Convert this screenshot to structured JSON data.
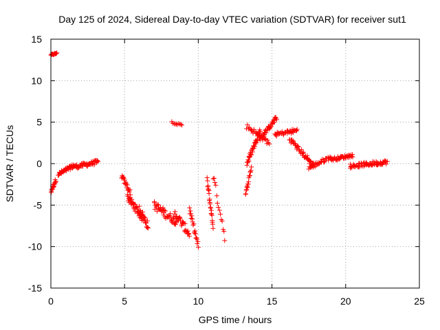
{
  "chart_data": {
    "type": "scatter",
    "title": "Day 125 of 2024, Sidereal Day-to-day VTEC variation (SDTVAR) for receiver sut1",
    "xlabel": "GPS time / hours",
    "ylabel": "SDTVAR / TECUs",
    "xlim": [
      0,
      25
    ],
    "ylim": [
      -15,
      15
    ],
    "xticks": [
      0,
      5,
      10,
      15,
      20,
      25
    ],
    "yticks": [
      -15,
      -10,
      -5,
      0,
      5,
      10,
      15
    ],
    "xtick_labels": [
      "0",
      "5",
      "10",
      "15",
      "20",
      "25"
    ],
    "ytick_labels": [
      "-15",
      "-10",
      "-5",
      "0",
      "5",
      "10",
      "15"
    ],
    "grid": true,
    "legend": "none",
    "marker": "+",
    "color": "#ff0000",
    "series": [
      {
        "name": "sut1",
        "clusters": [
          {
            "x": [
              0.0,
              0.4
            ],
            "y": [
              13.1,
              13.3
            ],
            "n": 14,
            "spread": 0.15
          },
          {
            "x": [
              0.0,
              0.35
            ],
            "y": [
              -3.4,
              -1.9
            ],
            "n": 18,
            "spread": 0.5
          },
          {
            "x": [
              0.5,
              1.6
            ],
            "y": [
              -1.3,
              -0.2
            ],
            "n": 40,
            "spread": 0.5
          },
          {
            "x": [
              1.6,
              3.2
            ],
            "y": [
              -0.4,
              0.2
            ],
            "n": 45,
            "spread": 0.5
          },
          {
            "x": [
              4.8,
              5.4
            ],
            "y": [
              -1.5,
              -3.5
            ],
            "n": 20,
            "spread": 0.6
          },
          {
            "x": [
              5.2,
              6.2
            ],
            "y": [
              -4.0,
              -6.5
            ],
            "n": 40,
            "spread": 0.9
          },
          {
            "x": [
              6.0,
              6.6
            ],
            "y": [
              -5.5,
              -7.5
            ],
            "n": 25,
            "spread": 1.0
          },
          {
            "x": [
              7.0,
              8.5
            ],
            "y": [
              -5.0,
              -7.0
            ],
            "n": 45,
            "spread": 1.0
          },
          {
            "x": [
              8.2,
              8.9
            ],
            "y": [
              5.0,
              4.6
            ],
            "n": 10,
            "spread": 0.2
          },
          {
            "x": [
              8.4,
              9.4
            ],
            "y": [
              -6.0,
              -8.5
            ],
            "n": 30,
            "spread": 1.0
          },
          {
            "x": [
              9.4,
              10.0
            ],
            "y": [
              -5.5,
              -10.0
            ],
            "n": 20,
            "spread": 0.8
          },
          {
            "x": [
              10.6,
              11.0
            ],
            "y": [
              -2.0,
              -7.5
            ],
            "n": 22,
            "spread": 0.8
          },
          {
            "x": [
              11.0,
              11.8
            ],
            "y": [
              -1.5,
              -8.7
            ],
            "n": 14,
            "spread": 1.2
          },
          {
            "x": [
              13.2,
              13.6
            ],
            "y": [
              -3.8,
              -0.5
            ],
            "n": 18,
            "spread": 0.5
          },
          {
            "x": [
              13.3,
              14.2
            ],
            "y": [
              0.0,
              4.0
            ],
            "n": 40,
            "spread": 0.6
          },
          {
            "x": [
              13.3,
              14.8
            ],
            "y": [
              4.5,
              2.5
            ],
            "n": 30,
            "spread": 0.6
          },
          {
            "x": [
              14.2,
              15.3
            ],
            "y": [
              3.0,
              5.5
            ],
            "n": 40,
            "spread": 0.5
          },
          {
            "x": [
              15.2,
              16.7
            ],
            "y": [
              3.5,
              4.0
            ],
            "n": 35,
            "spread": 0.5
          },
          {
            "x": [
              16.2,
              17.8
            ],
            "y": [
              3.0,
              -0.2
            ],
            "n": 45,
            "spread": 0.6
          },
          {
            "x": [
              17.5,
              19.0
            ],
            "y": [
              -0.5,
              0.8
            ],
            "n": 35,
            "spread": 0.5
          },
          {
            "x": [
              19.0,
              20.5
            ],
            "y": [
              0.5,
              1.0
            ],
            "n": 40,
            "spread": 0.4
          },
          {
            "x": [
              20.3,
              22.8
            ],
            "y": [
              -0.3,
              0.2
            ],
            "n": 70,
            "spread": 0.5
          }
        ]
      }
    ]
  }
}
